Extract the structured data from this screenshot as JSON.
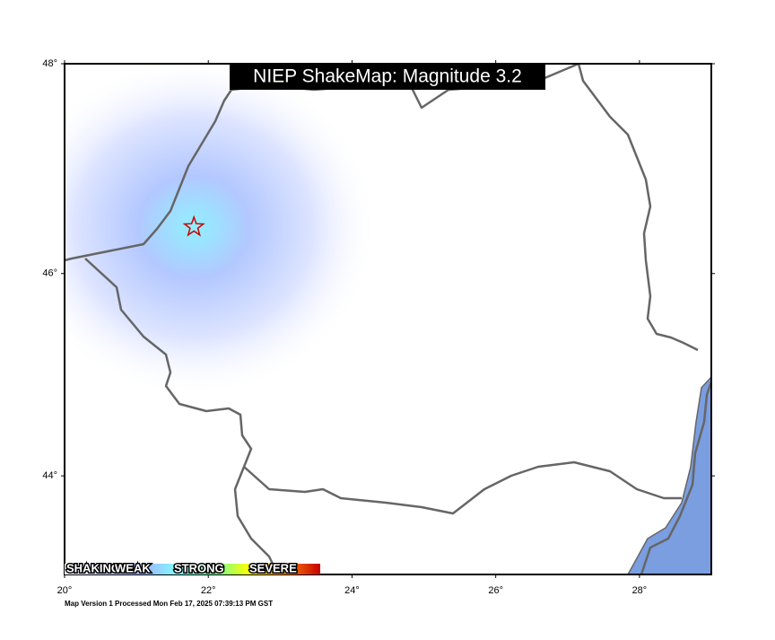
{
  "title": "NIEP ShakeMap: Magnitude 3.2",
  "footer": "Map Version 1 Processed Mon Feb 17, 2025 07:39:13 PM GST",
  "lon_range": [
    20,
    29
  ],
  "lat_range": [
    43,
    48
  ],
  "lon_ticks": [
    {
      "value": 20,
      "label": "20°"
    },
    {
      "value": 22,
      "label": "22°"
    },
    {
      "value": 24,
      "label": "24°"
    },
    {
      "value": 26,
      "label": "26°"
    },
    {
      "value": 28,
      "label": "28°"
    }
  ],
  "lat_ticks": [
    {
      "value": 44,
      "label": "44°"
    },
    {
      "value": 46,
      "label": "46°"
    },
    {
      "value": 48,
      "label": "48°"
    }
  ],
  "epicenter": {
    "lon": 21.8,
    "lat": 46.45
  },
  "legend": [
    "SHAKING",
    "WEAK",
    "STRONG",
    "SEVERE"
  ]
}
